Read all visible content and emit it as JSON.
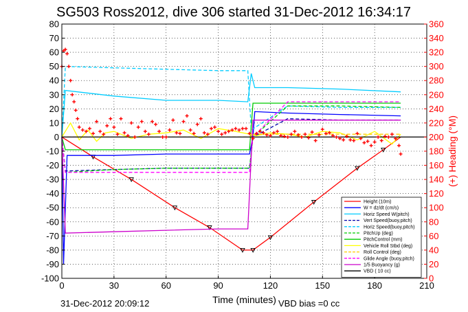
{
  "chart_data": {
    "type": "line",
    "title": "SG503 Ross2012, dive 306 started 31-Dec-2012 16:34:17",
    "xlabel": "Time (minutes)",
    "ylabel": "",
    "y2label": "(+) Heading (°M)",
    "xlim": [
      0,
      210
    ],
    "ylim": [
      -100,
      80
    ],
    "y2lim": [
      0,
      360
    ],
    "xticks": [
      0,
      30,
      60,
      90,
      120,
      150,
      180,
      210
    ],
    "yticks": [
      -100,
      -90,
      -80,
      -70,
      -60,
      -50,
      -40,
      -30,
      -20,
      -10,
      0,
      10,
      20,
      30,
      40,
      50,
      60,
      70,
      80
    ],
    "y2ticks": [
      0,
      20,
      40,
      60,
      80,
      100,
      120,
      140,
      160,
      180,
      200,
      220,
      240,
      260,
      280,
      300,
      320,
      340,
      360
    ],
    "grid": true,
    "legend_position": "bottom-right",
    "series": [
      {
        "name": "Height (10m)",
        "color": "#ff0000",
        "style": "solid",
        "x": [
          0,
          18,
          40,
          65,
          85,
          104,
          110,
          120,
          145,
          170,
          185,
          195
        ],
        "y": [
          0,
          -14,
          -30,
          -50,
          -64,
          -80,
          -80,
          -71,
          -46,
          -22,
          -9,
          0
        ]
      },
      {
        "name": "W = dz/dt (cm/s)",
        "color": "#0000ff",
        "style": "solid",
        "x": [
          0,
          1,
          3,
          30,
          60,
          90,
          108,
          110,
          111,
          130,
          160,
          195
        ],
        "y": [
          0,
          -90,
          -13,
          -13,
          -12,
          -12,
          -12,
          0,
          18,
          17,
          16,
          15
        ]
      },
      {
        "name": "Horiz Speed W(pitch)",
        "color": "#00ccff",
        "style": "solid",
        "x": [
          0,
          2,
          30,
          60,
          90,
          107,
          109,
          111,
          130,
          160,
          195
        ],
        "y": [
          0,
          33,
          29,
          26,
          26,
          25,
          45,
          35,
          35,
          34,
          32
        ]
      },
      {
        "name": "Vert Speed(buoy,pitch)",
        "color": "#0000aa",
        "style": "dashed",
        "x": [
          0,
          2,
          30,
          60,
          90,
          108,
          110,
          130,
          160,
          195
        ],
        "y": [
          0,
          -24,
          -23,
          -22,
          -22,
          -22,
          0,
          13,
          12,
          12
        ]
      },
      {
        "name": "Horiz Speed(buoy,pitch)",
        "color": "#00ccff",
        "style": "dashed",
        "x": [
          0,
          2,
          30,
          60,
          90,
          107,
          109,
          130,
          160,
          195
        ],
        "y": [
          0,
          50,
          49,
          48,
          47,
          47,
          5,
          22,
          21,
          21
        ]
      },
      {
        "name": "PitchUp (deg)",
        "color": "#00cc00",
        "style": "dashed",
        "x": [
          0,
          2,
          30,
          60,
          90,
          108,
          110,
          130,
          160,
          195
        ],
        "y": [
          0,
          -25,
          -23,
          -22,
          -22,
          -22,
          0,
          22,
          22,
          21
        ]
      },
      {
        "name": "PitchControl (mm)",
        "color": "#00cc00",
        "style": "solid",
        "x": [
          0,
          2,
          60,
          108,
          110,
          195
        ],
        "y": [
          0,
          -9,
          -9,
          -9,
          24,
          24
        ]
      },
      {
        "name": "Vehicle Roll Stbd (deg)",
        "color": "#ffff00",
        "style": "solid",
        "x": [
          0,
          5,
          10,
          15,
          20,
          25,
          30,
          40,
          50,
          60,
          70,
          80,
          90,
          100,
          108,
          112,
          120,
          130,
          140,
          150,
          160,
          170,
          180,
          190,
          195
        ],
        "y": [
          0,
          10,
          -2,
          5,
          -3,
          3,
          4,
          -1,
          2,
          3,
          5,
          -1,
          6,
          4,
          2,
          1,
          3,
          2,
          0,
          4,
          3,
          -2,
          4,
          -5,
          2
        ]
      },
      {
        "name": "Roll Control (deg)",
        "color": "#ffcc00",
        "style": "dashed",
        "x": [
          0,
          60,
          108,
          110,
          195
        ],
        "y": [
          0,
          0,
          0,
          2,
          2
        ]
      },
      {
        "name": "Glide Angle (buoy,pitch)",
        "color": "#ff00ff",
        "style": "dashed",
        "x": [
          0,
          2,
          60,
          108,
          110,
          130,
          195
        ],
        "y": [
          0,
          -25,
          -25,
          -25,
          0,
          25,
          25
        ]
      },
      {
        "name": "1/5 Buoyancy (g)",
        "color": "#cc00cc",
        "style": "solid",
        "x": [
          0,
          2,
          30,
          60,
          90,
          107,
          110,
          130,
          160,
          195
        ],
        "y": [
          0,
          -68,
          -67,
          -66,
          -65,
          -65,
          12,
          12,
          12,
          12
        ]
      },
      {
        "name": "VBD ( 10 cc)",
        "color": "#000000",
        "style": "solid",
        "x": [
          0,
          210
        ],
        "y": [
          0,
          0
        ]
      }
    ],
    "heading": {
      "name": "(+) Heading (°M)",
      "axis": "right",
      "color": "#ff0000",
      "marker": "+",
      "x": [
        0,
        1,
        2,
        3,
        4,
        5,
        6,
        7,
        8,
        9,
        10,
        12,
        14,
        16,
        18,
        20,
        22,
        24,
        26,
        28,
        30,
        32,
        34,
        36,
        38,
        40,
        42,
        44,
        46,
        48,
        50,
        52,
        54,
        56,
        58,
        60,
        62,
        64,
        66,
        68,
        70,
        72,
        74,
        76,
        78,
        80,
        82,
        84,
        86,
        88,
        90,
        92,
        94,
        96,
        98,
        100,
        102,
        104,
        106,
        108,
        110,
        112,
        114,
        116,
        118,
        120,
        122,
        124,
        126,
        128,
        130,
        132,
        134,
        136,
        138,
        140,
        142,
        144,
        146,
        148,
        150,
        152,
        154,
        156,
        158,
        160,
        162,
        164,
        166,
        168,
        170,
        172,
        174,
        176,
        178,
        180,
        182,
        184,
        186,
        188,
        190,
        192,
        194,
        195
      ],
      "y": [
        300,
        322,
        324,
        318,
        300,
        280,
        260,
        250,
        238,
        226,
        214,
        210,
        208,
        212,
        205,
        222,
        208,
        204,
        216,
        226,
        214,
        204,
        226,
        206,
        202,
        220,
        200,
        214,
        222,
        208,
        204,
        222,
        218,
        208,
        200,
        200,
        210,
        224,
        206,
        205,
        222,
        230,
        210,
        205,
        218,
        226,
        206,
        204,
        212,
        214,
        208,
        204,
        206,
        208,
        210,
        212,
        210,
        212,
        212,
        205,
        198,
        205,
        208,
        206,
        203,
        202,
        206,
        208,
        202,
        201,
        200,
        204,
        208,
        203,
        200,
        204,
        199,
        207,
        195,
        203,
        211,
        205,
        206,
        202,
        200,
        198,
        196,
        201,
        196,
        195,
        205,
        198,
        192,
        194,
        188,
        193,
        200,
        195,
        201,
        200,
        204,
        198,
        188,
        176
      ]
    }
  },
  "footer": {
    "timestamp": "31-Dec-2012 20:09:12",
    "vbd_bias": "VBD bias =0 cc"
  }
}
